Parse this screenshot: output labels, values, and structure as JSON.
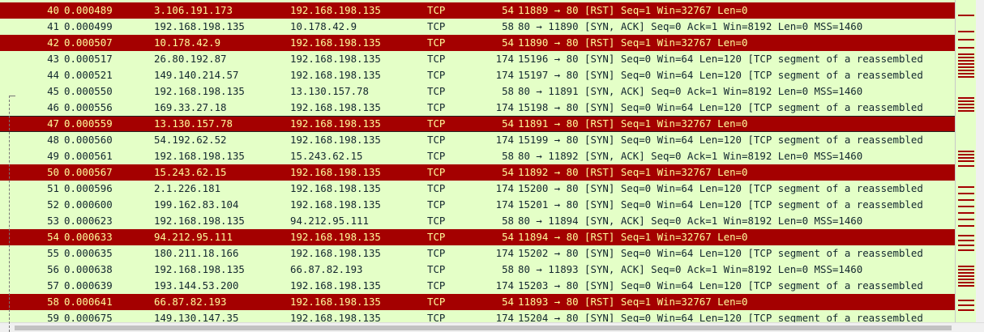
{
  "packets": [
    {
      "no": "40",
      "time": "0.000489",
      "src": "3.106.191.173",
      "dst": "192.168.198.135",
      "proto": "TCP",
      "len": "54",
      "info": "11889 → 80 [RST] Seq=1 Win=32767 Len=0",
      "rst": true
    },
    {
      "no": "41",
      "time": "0.000499",
      "src": "192.168.198.135",
      "dst": "10.178.42.9",
      "proto": "TCP",
      "len": "58",
      "info": "80 → 11890 [SYN, ACK] Seq=0 Ack=1 Win=8192 Len=0 MSS=1460",
      "rst": false
    },
    {
      "no": "42",
      "time": "0.000507",
      "src": "10.178.42.9",
      "dst": "192.168.198.135",
      "proto": "TCP",
      "len": "54",
      "info": "11890 → 80 [RST] Seq=1 Win=32767 Len=0",
      "rst": true
    },
    {
      "no": "43",
      "time": "0.000517",
      "src": "26.80.192.87",
      "dst": "192.168.198.135",
      "proto": "TCP",
      "len": "174",
      "info": "15196 → 80 [SYN] Seq=0 Win=64 Len=120 [TCP segment of a reassembled",
      "rst": false
    },
    {
      "no": "44",
      "time": "0.000521",
      "src": "149.140.214.57",
      "dst": "192.168.198.135",
      "proto": "TCP",
      "len": "174",
      "info": "15197 → 80 [SYN] Seq=0 Win=64 Len=120 [TCP segment of a reassembled",
      "rst": false
    },
    {
      "no": "45",
      "time": "0.000550",
      "src": "192.168.198.135",
      "dst": "13.130.157.78",
      "proto": "TCP",
      "len": "58",
      "info": "80 → 11891 [SYN, ACK] Seq=0 Ack=1 Win=8192 Len=0 MSS=1460",
      "rst": false
    },
    {
      "no": "46",
      "time": "0.000556",
      "src": "169.33.27.18",
      "dst": "192.168.198.135",
      "proto": "TCP",
      "len": "174",
      "info": "15198 → 80 [SYN] Seq=0 Win=64 Len=120 [TCP segment of a reassembled",
      "rst": false
    },
    {
      "no": "47",
      "time": "0.000559",
      "src": "13.130.157.78",
      "dst": "192.168.198.135",
      "proto": "TCP",
      "len": "54",
      "info": "11891 → 80 [RST] Seq=1 Win=32767 Len=0",
      "rst": true,
      "bordered": true
    },
    {
      "no": "48",
      "time": "0.000560",
      "src": "54.192.62.52",
      "dst": "192.168.198.135",
      "proto": "TCP",
      "len": "174",
      "info": "15199 → 80 [SYN] Seq=0 Win=64 Len=120 [TCP segment of a reassembled",
      "rst": false
    },
    {
      "no": "49",
      "time": "0.000561",
      "src": "192.168.198.135",
      "dst": "15.243.62.15",
      "proto": "TCP",
      "len": "58",
      "info": "80 → 11892 [SYN, ACK] Seq=0 Ack=1 Win=8192 Len=0 MSS=1460",
      "rst": false
    },
    {
      "no": "50",
      "time": "0.000567",
      "src": "15.243.62.15",
      "dst": "192.168.198.135",
      "proto": "TCP",
      "len": "54",
      "info": "11892 → 80 [RST] Seq=1 Win=32767 Len=0",
      "rst": true
    },
    {
      "no": "51",
      "time": "0.000596",
      "src": "2.1.226.181",
      "dst": "192.168.198.135",
      "proto": "TCP",
      "len": "174",
      "info": "15200 → 80 [SYN] Seq=0 Win=64 Len=120 [TCP segment of a reassembled",
      "rst": false
    },
    {
      "no": "52",
      "time": "0.000600",
      "src": "199.162.83.104",
      "dst": "192.168.198.135",
      "proto": "TCP",
      "len": "174",
      "info": "15201 → 80 [SYN] Seq=0 Win=64 Len=120 [TCP segment of a reassembled",
      "rst": false
    },
    {
      "no": "53",
      "time": "0.000623",
      "src": "192.168.198.135",
      "dst": "94.212.95.111",
      "proto": "TCP",
      "len": "58",
      "info": "80 → 11894 [SYN, ACK] Seq=0 Ack=1 Win=8192 Len=0 MSS=1460",
      "rst": false
    },
    {
      "no": "54",
      "time": "0.000633",
      "src": "94.212.95.111",
      "dst": "192.168.198.135",
      "proto": "TCP",
      "len": "54",
      "info": "11894 → 80 [RST] Seq=1 Win=32767 Len=0",
      "rst": true
    },
    {
      "no": "55",
      "time": "0.000635",
      "src": "180.211.18.166",
      "dst": "192.168.198.135",
      "proto": "TCP",
      "len": "174",
      "info": "15202 → 80 [SYN] Seq=0 Win=64 Len=120 [TCP segment of a reassembled",
      "rst": false
    },
    {
      "no": "56",
      "time": "0.000638",
      "src": "192.168.198.135",
      "dst": "66.87.82.193",
      "proto": "TCP",
      "len": "58",
      "info": "80 → 11893 [SYN, ACK] Seq=0 Ack=1 Win=8192 Len=0 MSS=1460",
      "rst": false
    },
    {
      "no": "57",
      "time": "0.000639",
      "src": "193.144.53.200",
      "dst": "192.168.198.135",
      "proto": "TCP",
      "len": "174",
      "info": "15203 → 80 [SYN] Seq=0 Win=64 Len=120 [TCP segment of a reassembled",
      "rst": false
    },
    {
      "no": "58",
      "time": "0.000641",
      "src": "66.87.82.193",
      "dst": "192.168.198.135",
      "proto": "TCP",
      "len": "54",
      "info": "11893 → 80 [RST] Seq=1 Win=32767 Len=0",
      "rst": true
    },
    {
      "no": "59",
      "time": "0.000675",
      "src": "149.130.147.35",
      "dst": "192.168.198.135",
      "proto": "TCP",
      "len": "174",
      "info": "15204 → 80 [SYN] Seq=0 Win=64 Len=120 [TCP segment of a reassembled",
      "rst": false
    }
  ],
  "colors": {
    "rst_bg": "#a40000",
    "rst_fg": "#fffc9c",
    "tcp_bg": "#e4ffc7",
    "tcp_fg": "#12272e"
  }
}
